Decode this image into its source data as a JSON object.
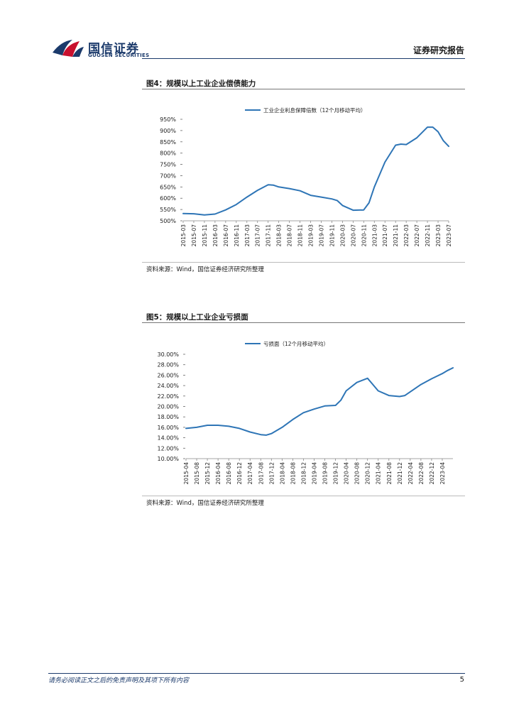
{
  "header": {
    "logo_cn": "国信证券",
    "logo_en": "GUOSEN SECURITIES",
    "report_type": "证券研究报告",
    "brand_color": "#1b3a6b",
    "logo_red": "#c8102e"
  },
  "figures": [
    {
      "title": "图4：规模以上工业企业偿债能力",
      "source": "资料来源：Wind，国信证券经济研究所整理"
    },
    {
      "title": "图5：规模以上工业企业亏损面",
      "source": "资料来源：Wind，国信证券经济研究所整理"
    }
  ],
  "chart_data": [
    {
      "type": "line",
      "legend_position": "top-center",
      "grid": false,
      "line_color": "#2e75b6",
      "y_ticks": [
        "950%",
        "900%",
        "850%",
        "800%",
        "750%",
        "700%",
        "650%",
        "600%",
        "550%",
        "500%"
      ],
      "ylim": [
        500,
        950
      ],
      "x_ticks": [
        "2015-03",
        "2015-07",
        "2015-11",
        "2016-03",
        "2016-07",
        "2016-11",
        "2017-03",
        "2017-07",
        "2017-11",
        "2018-03",
        "2018-07",
        "2018-11",
        "2019-03",
        "2019-07",
        "2019-11",
        "2020-03",
        "2020-07",
        "2020-11",
        "2021-03",
        "2021-07",
        "2021-11",
        "2022-03",
        "2022-07",
        "2022-11",
        "2023-03",
        "2023-07"
      ],
      "series": [
        {
          "name": "工业企业利息保障倍数（12个月移动平均）",
          "x": [
            "2015-03",
            "2015-07",
            "2015-11",
            "2016-03",
            "2016-07",
            "2016-11",
            "2017-03",
            "2017-07",
            "2017-11",
            "2018-01",
            "2018-03",
            "2018-07",
            "2018-11",
            "2019-03",
            "2019-07",
            "2019-11",
            "2020-01",
            "2020-03",
            "2020-07",
            "2020-11",
            "2021-01",
            "2021-03",
            "2021-07",
            "2021-11",
            "2022-01",
            "2022-03",
            "2022-07",
            "2022-11",
            "2023-01",
            "2023-03",
            "2023-05",
            "2023-07"
          ],
          "values": [
            532,
            531,
            526,
            530,
            548,
            572,
            605,
            635,
            660,
            658,
            650,
            643,
            633,
            613,
            605,
            597,
            590,
            568,
            547,
            548,
            580,
            650,
            760,
            835,
            840,
            838,
            868,
            915,
            915,
            895,
            855,
            830
          ]
        }
      ]
    },
    {
      "type": "line",
      "legend_position": "top-center",
      "grid": false,
      "line_color": "#2e75b6",
      "y_ticks": [
        "30.00%",
        "28.00%",
        "26.00%",
        "24.00%",
        "22.00%",
        "20.00%",
        "18.00%",
        "16.00%",
        "14.00%",
        "12.00%",
        "10.00%"
      ],
      "ylim": [
        10,
        30
      ],
      "x_ticks": [
        "2015-04",
        "2015-08",
        "2015-12",
        "2016-04",
        "2016-08",
        "2016-12",
        "2017-04",
        "2017-08",
        "2017-12",
        "2018-04",
        "2018-08",
        "2018-12",
        "2019-04",
        "2019-08",
        "2019-12",
        "2020-04",
        "2020-08",
        "2020-12",
        "2021-04",
        "2021-08",
        "2021-12",
        "2022-04",
        "2022-08",
        "2022-12",
        "2023-04"
      ],
      "series": [
        {
          "name": "亏损面（12个月移动平均）",
          "x": [
            "2015-04",
            "2015-08",
            "2015-12",
            "2016-04",
            "2016-08",
            "2016-12",
            "2017-04",
            "2017-08",
            "2017-10",
            "2017-12",
            "2018-04",
            "2018-08",
            "2018-12",
            "2019-04",
            "2019-08",
            "2019-12",
            "2020-02",
            "2020-04",
            "2020-08",
            "2020-12",
            "2021-02",
            "2021-04",
            "2021-08",
            "2021-12",
            "2022-02",
            "2022-04",
            "2022-08",
            "2022-12",
            "2023-02",
            "2023-04",
            "2023-06",
            "2023-08"
          ],
          "values": [
            15.8,
            16.0,
            16.4,
            16.4,
            16.2,
            15.8,
            15.1,
            14.6,
            14.5,
            14.8,
            16.0,
            17.5,
            18.8,
            19.5,
            20.1,
            20.2,
            21.2,
            23.0,
            24.6,
            25.4,
            24.2,
            23.0,
            22.1,
            21.9,
            22.1,
            22.8,
            24.2,
            25.3,
            25.8,
            26.3,
            26.9,
            27.4
          ]
        }
      ]
    }
  ],
  "footer": {
    "disclaimer": "请务必阅读正文之后的免责声明及其项下所有内容",
    "page_number": "5"
  }
}
